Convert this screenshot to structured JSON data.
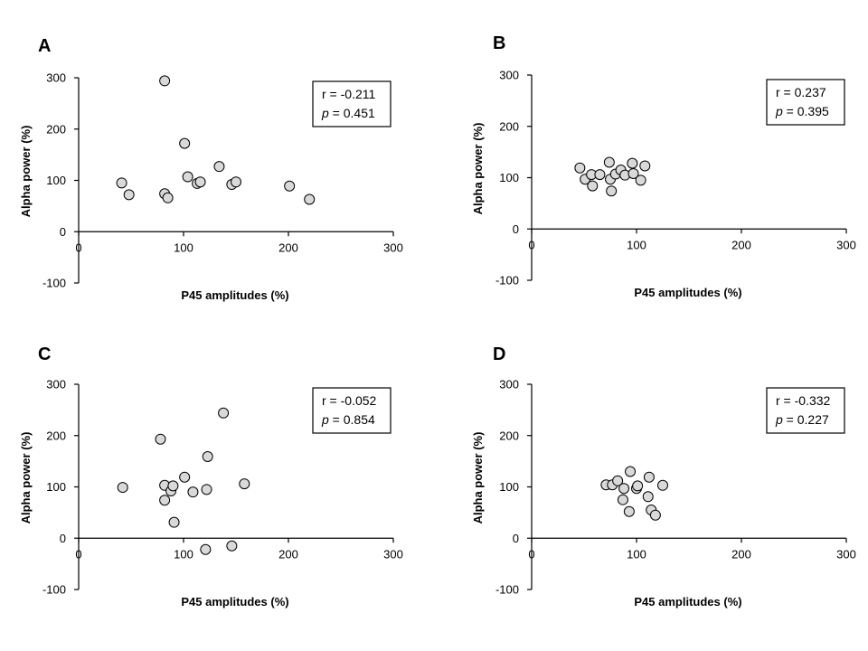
{
  "chart_data": [
    {
      "type": "scatter",
      "panel": "A",
      "xlabel": "P45 amplitudes (%)",
      "ylabel": "Alpha power (%)",
      "xlim": [
        0,
        300
      ],
      "ylim": [
        -100,
        300
      ],
      "xticks": [
        0,
        100,
        200,
        300
      ],
      "yticks": [
        -100,
        0,
        100,
        200,
        300
      ],
      "stats": {
        "r": "r = -0.211",
        "p_symbol": "p",
        "p_value": " = 0.451"
      },
      "points": [
        {
          "x": 41,
          "y": 95
        },
        {
          "x": 48,
          "y": 72
        },
        {
          "x": 82,
          "y": 294
        },
        {
          "x": 82,
          "y": 74
        },
        {
          "x": 85,
          "y": 66
        },
        {
          "x": 101,
          "y": 172
        },
        {
          "x": 104,
          "y": 107
        },
        {
          "x": 113,
          "y": 94
        },
        {
          "x": 116,
          "y": 97
        },
        {
          "x": 134,
          "y": 127
        },
        {
          "x": 146,
          "y": 92
        },
        {
          "x": 150,
          "y": 97
        },
        {
          "x": 201,
          "y": 89
        },
        {
          "x": 220,
          "y": 63
        }
      ]
    },
    {
      "type": "scatter",
      "panel": "B",
      "xlabel": "P45 amplitudes (%)",
      "ylabel": "Alpha power (%)",
      "xlim": [
        0,
        300
      ],
      "ylim": [
        -100,
        300
      ],
      "xticks": [
        0,
        100,
        200,
        300
      ],
      "yticks": [
        -100,
        0,
        100,
        200,
        300
      ],
      "stats": {
        "r": "r = 0.237",
        "p_symbol": "p",
        "p_value": " = 0.395"
      },
      "points": [
        {
          "x": 46,
          "y": 119
        },
        {
          "x": 51,
          "y": 97
        },
        {
          "x": 57,
          "y": 106
        },
        {
          "x": 58,
          "y": 84
        },
        {
          "x": 65,
          "y": 106
        },
        {
          "x": 74,
          "y": 130
        },
        {
          "x": 75,
          "y": 97
        },
        {
          "x": 76,
          "y": 74
        },
        {
          "x": 80,
          "y": 107
        },
        {
          "x": 85,
          "y": 115
        },
        {
          "x": 89,
          "y": 105
        },
        {
          "x": 96,
          "y": 128
        },
        {
          "x": 97,
          "y": 108
        },
        {
          "x": 104,
          "y": 95
        },
        {
          "x": 108,
          "y": 123
        }
      ]
    },
    {
      "type": "scatter",
      "panel": "C",
      "xlabel": "P45 amplitudes (%)",
      "ylabel": "Alpha power (%)",
      "xlim": [
        0,
        300
      ],
      "ylim": [
        -100,
        300
      ],
      "xticks": [
        0,
        100,
        200,
        300
      ],
      "yticks": [
        -100,
        0,
        100,
        200,
        300
      ],
      "stats": {
        "r": "r = -0.052",
        "p_symbol": "p",
        "p_value": " = 0.854"
      },
      "points": [
        {
          "x": 42,
          "y": 99
        },
        {
          "x": 78,
          "y": 193
        },
        {
          "x": 82,
          "y": 103
        },
        {
          "x": 82,
          "y": 74
        },
        {
          "x": 88,
          "y": 92
        },
        {
          "x": 90,
          "y": 102
        },
        {
          "x": 91,
          "y": 31
        },
        {
          "x": 101,
          "y": 119
        },
        {
          "x": 109,
          "y": 90
        },
        {
          "x": 121,
          "y": -22
        },
        {
          "x": 122,
          "y": 95
        },
        {
          "x": 123,
          "y": 159
        },
        {
          "x": 138,
          "y": 244
        },
        {
          "x": 146,
          "y": -15
        },
        {
          "x": 158,
          "y": 106
        }
      ]
    },
    {
      "type": "scatter",
      "panel": "D",
      "xlabel": "P45 amplitudes (%)",
      "ylabel": "Alpha power (%)",
      "xlim": [
        0,
        300
      ],
      "ylim": [
        -100,
        300
      ],
      "xticks": [
        0,
        100,
        200,
        300
      ],
      "yticks": [
        -100,
        0,
        100,
        200,
        300
      ],
      "stats": {
        "r": "r = -0.332",
        "p_symbol": "p",
        "p_value": " = 0.227"
      },
      "points": [
        {
          "x": 71,
          "y": 104
        },
        {
          "x": 77,
          "y": 104
        },
        {
          "x": 82,
          "y": 112
        },
        {
          "x": 87,
          "y": 75
        },
        {
          "x": 88,
          "y": 97
        },
        {
          "x": 93,
          "y": 52
        },
        {
          "x": 94,
          "y": 130
        },
        {
          "x": 100,
          "y": 97
        },
        {
          "x": 101,
          "y": 102
        },
        {
          "x": 111,
          "y": 81
        },
        {
          "x": 112,
          "y": 119
        },
        {
          "x": 114,
          "y": 55
        },
        {
          "x": 118,
          "y": 45
        },
        {
          "x": 125,
          "y": 103
        }
      ]
    }
  ]
}
